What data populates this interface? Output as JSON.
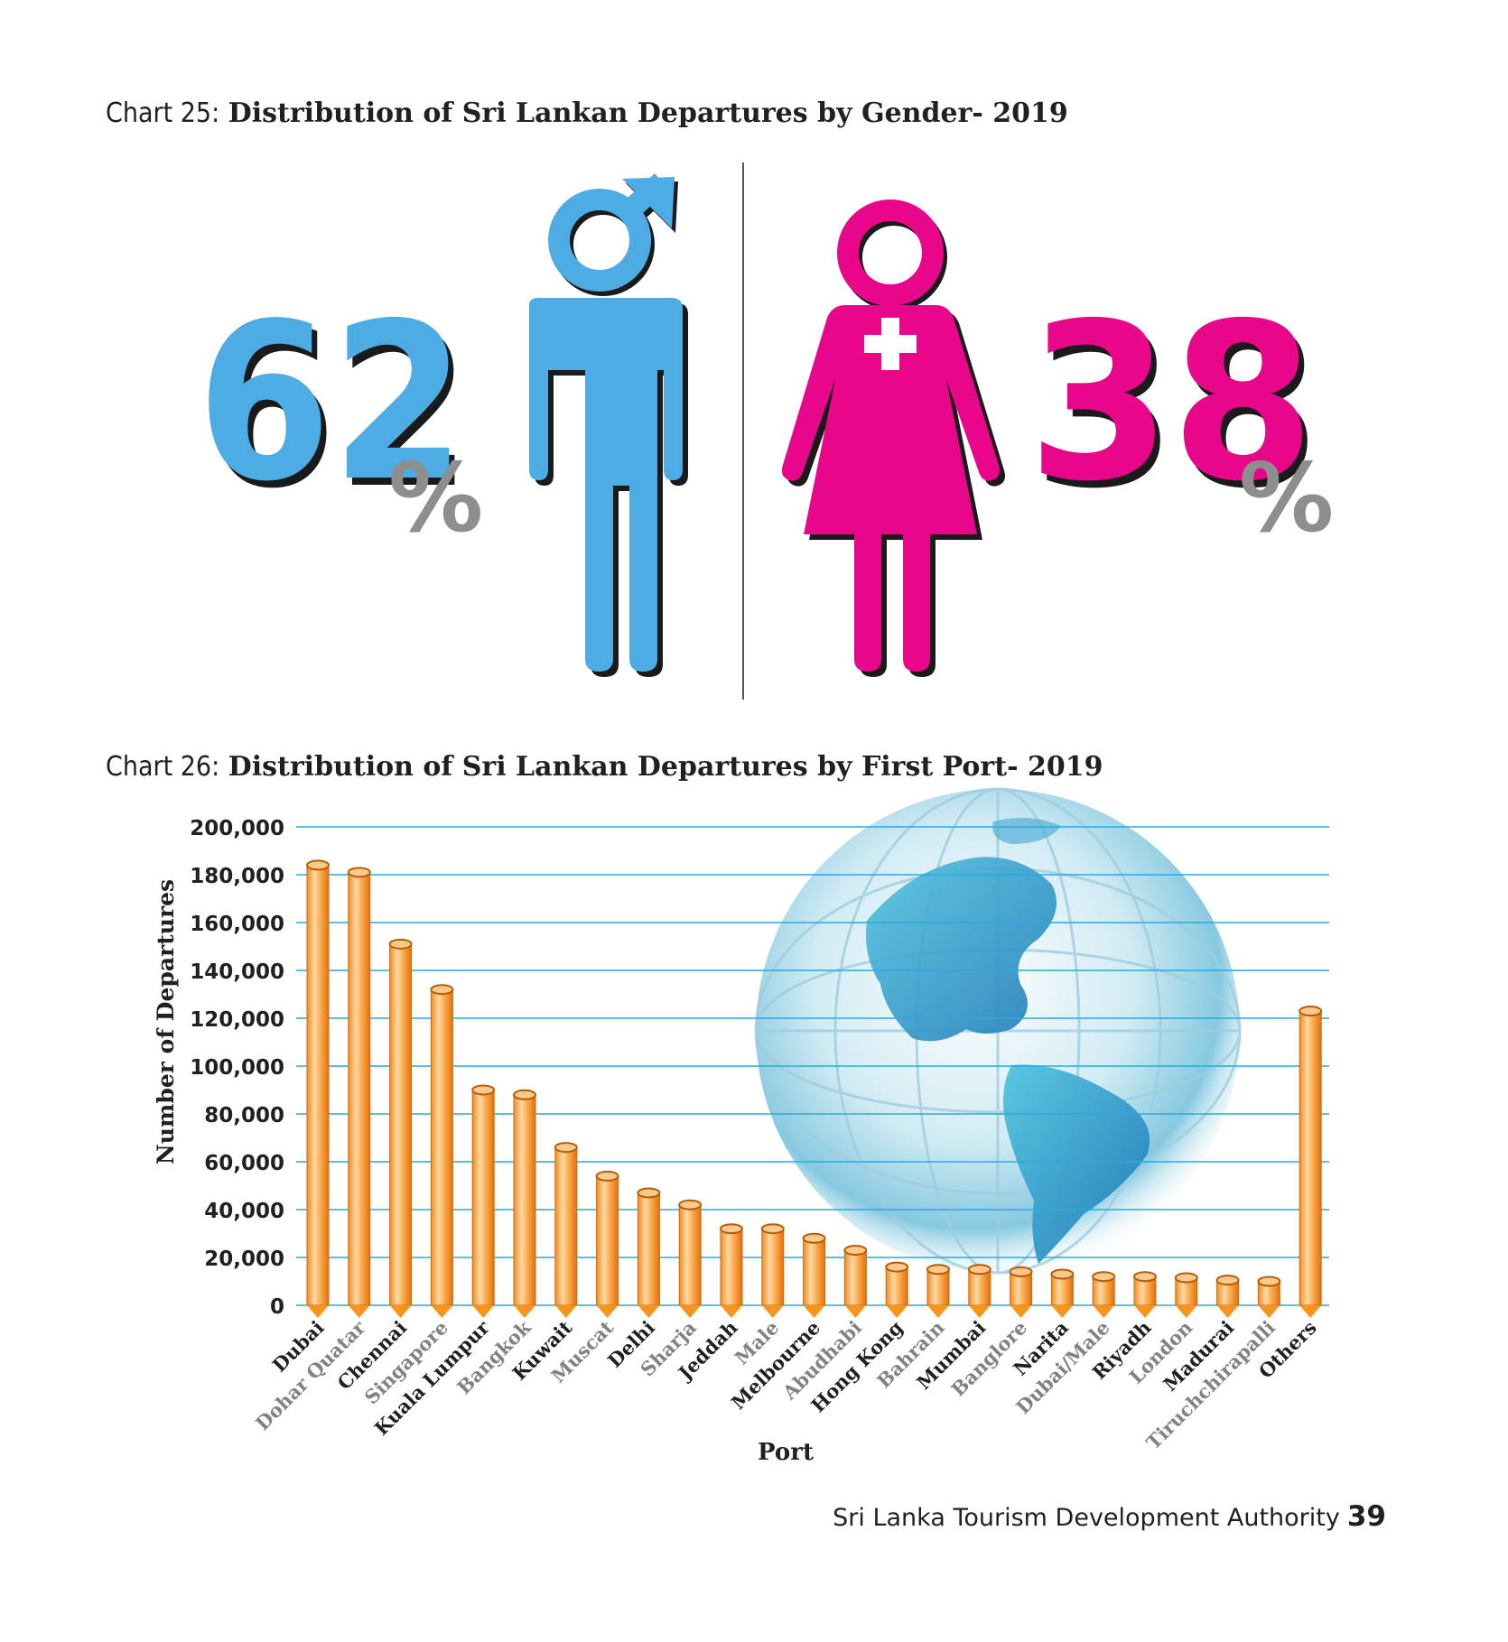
{
  "gender_chart": {
    "prefix": "Chart 25:",
    "title": "Distribution of Sri Lankan Departures by Gender- 2019",
    "male": {
      "value": "62",
      "unit": "%",
      "color": "#4dace3"
    },
    "female": {
      "value": "38",
      "unit": "%",
      "color": "#e8078b"
    },
    "percent_color": "#8e8e8e"
  },
  "port_chart_header": {
    "prefix": "Chart 26:",
    "title": "Distribution of Sri Lankan Departures by First Port- 2019"
  },
  "chart_data": {
    "type": "bar",
    "xlabel": "Port",
    "ylabel": "Number of Departures",
    "ylim": [
      0,
      200000
    ],
    "yticks": [
      0,
      20000,
      40000,
      60000,
      80000,
      100000,
      120000,
      140000,
      160000,
      180000,
      200000
    ],
    "ytick_labels": [
      "0",
      "20,000",
      "40,000",
      "60,000",
      "80,000",
      "100,000",
      "120,000",
      "140,000",
      "160,000",
      "180,000",
      "200,000"
    ],
    "grid": true,
    "bar_color": "#f7941d",
    "categories": [
      "Dubai",
      "Dohar Quatar",
      "Chennai",
      "Singapore",
      "Kuala Lumpur",
      "Bangkok",
      "Kuwait",
      "Muscat",
      "Delhi",
      "Sharja",
      "Jeddah",
      "Male",
      "Melbourne",
      "Abudhabi",
      "Hong Kong",
      "Bahrain",
      "Mumbai",
      "Banglore",
      "Narita",
      "Dubai/Male",
      "Riyadh",
      "London",
      "Madurai",
      "Tiruchchirapalli",
      "Others"
    ],
    "values": [
      184000,
      181000,
      151000,
      132000,
      90000,
      88000,
      66000,
      54000,
      47000,
      42000,
      32000,
      32000,
      28000,
      23000,
      16000,
      15000,
      15000,
      14000,
      13000,
      12000,
      12000,
      11500,
      10500,
      10000,
      123000
    ]
  },
  "footer": {
    "text": "Sri Lanka Tourism Development Authority",
    "page": "39"
  }
}
